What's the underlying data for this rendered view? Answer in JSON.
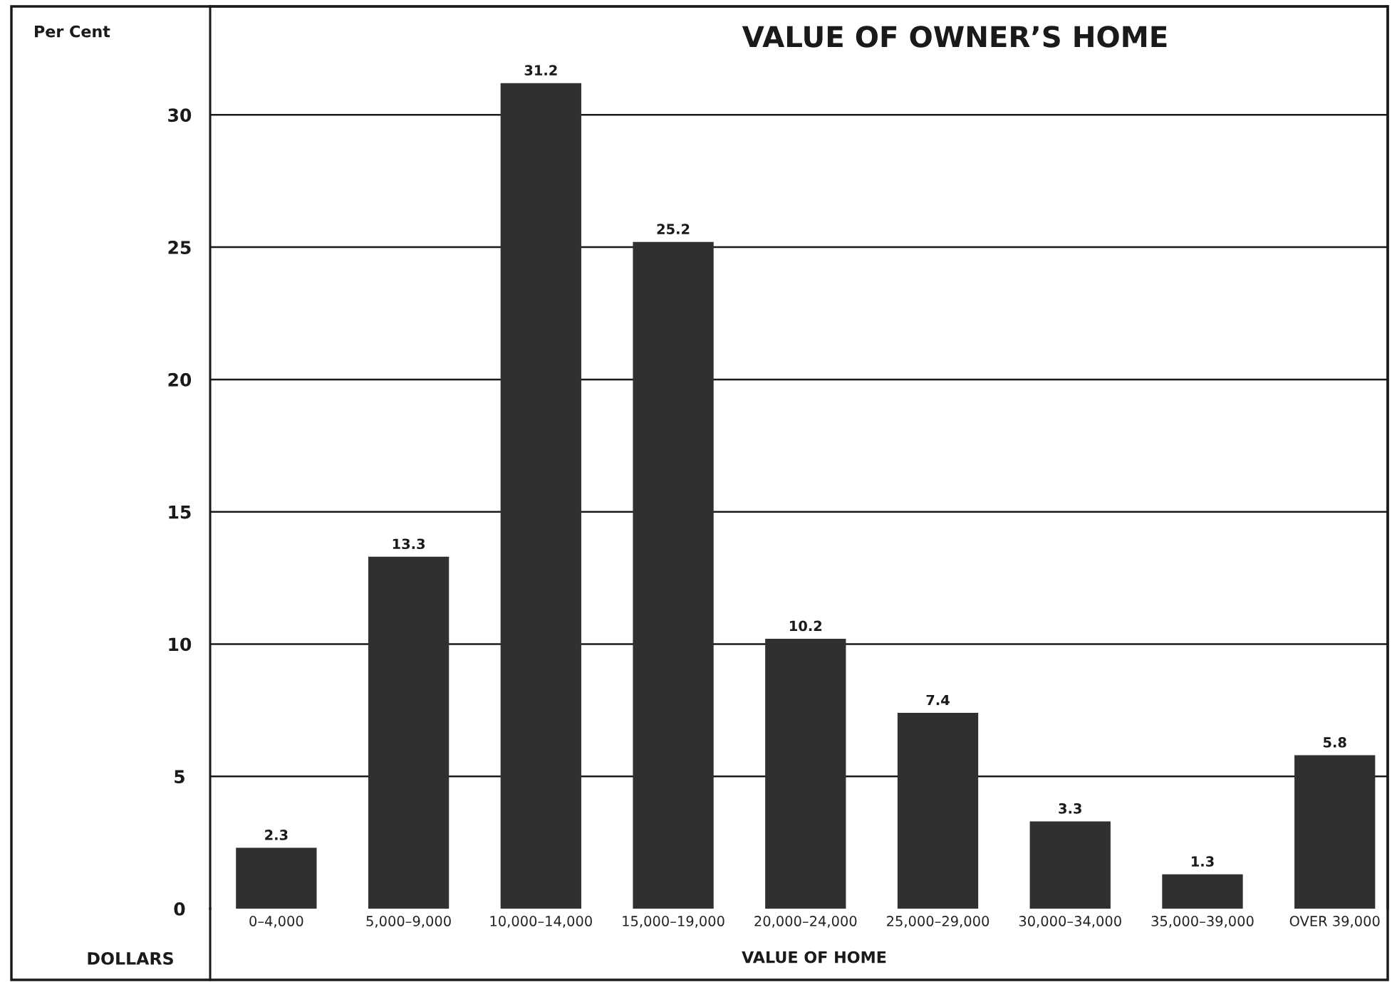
{
  "chart_data": {
    "type": "bar",
    "title": "VALUE OF OWNER’S HOME",
    "xlabel": "VALUE OF HOME",
    "ylabel": "Per Cent",
    "annotations": [
      "DOLLARS"
    ],
    "categories": [
      "0–4,000",
      "5,000–9,000",
      "10,000–14,000",
      "15,000–19,000",
      "20,000–24,000",
      "25,000–29,000",
      "30,000–34,000",
      "35,000–39,000",
      "OVER 39,000"
    ],
    "values": [
      2.3,
      13.3,
      31.2,
      25.2,
      10.2,
      7.4,
      3.3,
      1.3,
      5.8
    ],
    "color": "#303030",
    "ylim": [
      0,
      34.1
    ],
    "yticks": [
      0,
      5,
      10,
      15,
      20,
      25,
      30
    ],
    "grid": "y",
    "data_labels": true
  }
}
